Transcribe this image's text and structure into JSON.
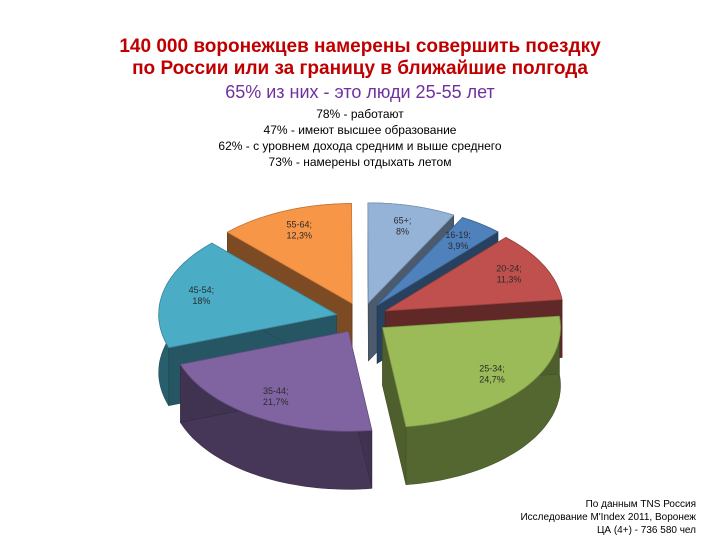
{
  "header": {
    "title_line1": "140 000 воронежцев намерены совершить поездку",
    "title_line2": "по России или за границу в ближайшие полгода",
    "subtitle": "65% из них -  это люди 25-55 лет"
  },
  "facts": [
    "78% - работают",
    "47% - имеют высшее образование",
    "62% - с уровнем дохода средним и выше среднего",
    "73% - намерены отдыхать летом"
  ],
  "source": [
    "По данным TNS Россия",
    "Исследование  M'Index 2011, Воронеж",
    "ЦА (4+) -  736 580 чел"
  ],
  "colors": {
    "title": "#c00000",
    "subtitle": "#7030a0"
  },
  "chart_data": {
    "type": "pie",
    "exploded": true,
    "three_d": true,
    "categories": [
      "16-19",
      "20-24",
      "25-34",
      "35-44",
      "45-54",
      "55-64",
      "65+"
    ],
    "values": [
      3.9,
      11.3,
      24.7,
      21.7,
      18,
      12.3,
      8
    ],
    "data_labels": [
      "16-19; 3,9%",
      "20-24; 11,3%",
      "25-34; 24,7%",
      "35-44; 21,7%",
      "45-54; 18%",
      "55-64; 12,3%",
      "65+; 8%"
    ],
    "colors": [
      "#4f81bd",
      "#c0504d",
      "#9bbb59",
      "#8064a2",
      "#4bacc6",
      "#f79646",
      "#95b3d7"
    ]
  }
}
